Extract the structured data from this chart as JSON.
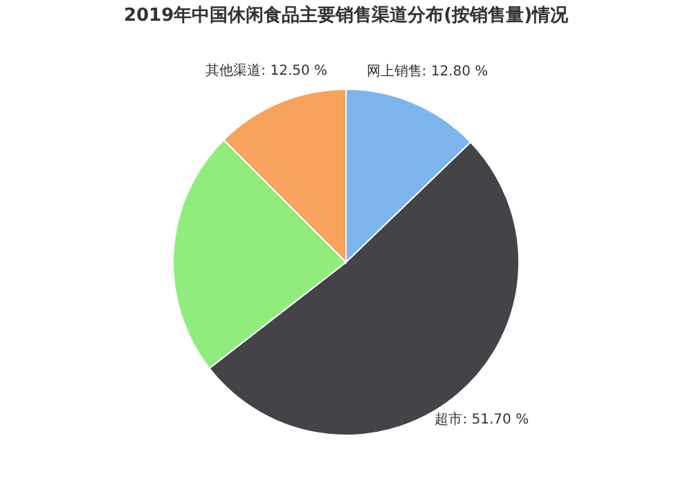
{
  "chart_data": {
    "type": "pie",
    "title": "2019年中国休闲食品主要销售渠道分布(按销售量)情况",
    "categories": [
      "网上销售",
      "超市",
      null,
      "其他渠道"
    ],
    "values": [
      12.8,
      51.7,
      23.0,
      12.5
    ],
    "value_labels": [
      "12.80 %",
      "51.70 %",
      null,
      "12.50 %"
    ],
    "colors": [
      "#7cb5ec",
      "#434348",
      "#90ed7d",
      "#f7a35c"
    ]
  }
}
